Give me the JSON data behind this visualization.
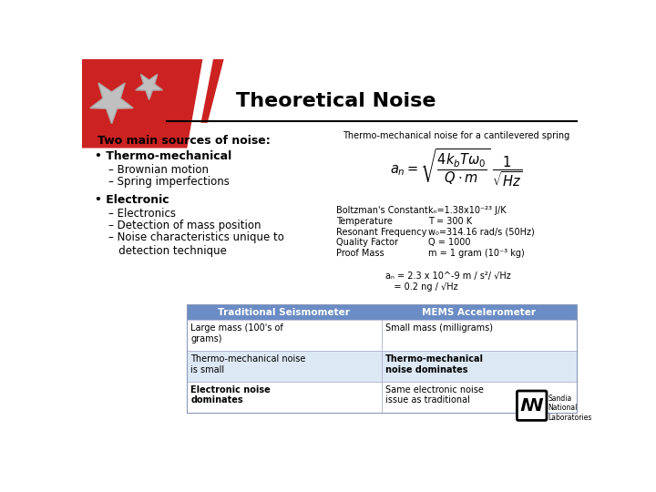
{
  "title": "Theoretical Noise",
  "title_fontsize": 16,
  "bg_color": "#ffffff",
  "left_content": {
    "main_header": "Two main sources of noise:",
    "bullet1_header": "• Thermo-mechanical",
    "bullet1_sub": [
      "– Brownian motion",
      "– Spring imperfections"
    ],
    "bullet2_header": "• Electronic",
    "bullet2_sub": [
      "– Electronics",
      "– Detection of mass position",
      "– Noise characteristics unique to\n   detection technique"
    ]
  },
  "right_content": {
    "thermo_label": "Thermo-mechanical noise for a cantilevered spring",
    "params_left": [
      "Boltzman's Constant",
      "Temperature",
      "Resonant Frequency",
      "Quality Factor",
      "Proof Mass"
    ],
    "params_right": [
      "kₙ=1.38x10⁻²³ J/K",
      "T = 300 K",
      "w₀=314.16 rad/s (50Hz)",
      "Q = 1000",
      "m = 1 gram (10⁻³ kg)"
    ],
    "result_line1": "aₙ = 2.3 x 10^-9 m / s²/ √Hz",
    "result_line2": "   = 0.2 ng / √Hz"
  },
  "table": {
    "header_bg": "#6b8cc4",
    "header_text_color": "#ffffff",
    "row_bgs": [
      "#ffffff",
      "#dde8f5",
      "#ffffff"
    ],
    "headers": [
      "Traditional Seismometer",
      "MEMS Accelerometer"
    ],
    "rows": [
      [
        "Large mass (100's of\ngrams)",
        "Small mass (milligrams)"
      ],
      [
        "Thermo-mechanical noise\nis small",
        "Thermo-mechanical\nnoise dominates"
      ],
      [
        "Electronic noise\ndominates",
        "Same electronic noise\nissue as traditional"
      ]
    ],
    "bold_cells": [
      [
        false,
        false
      ],
      [
        false,
        true
      ],
      [
        true,
        false
      ]
    ]
  },
  "flag": {
    "red": "#cc2222",
    "white": "#ffffff",
    "blue": "#2244aa",
    "star_color": "#c0c0c0"
  }
}
